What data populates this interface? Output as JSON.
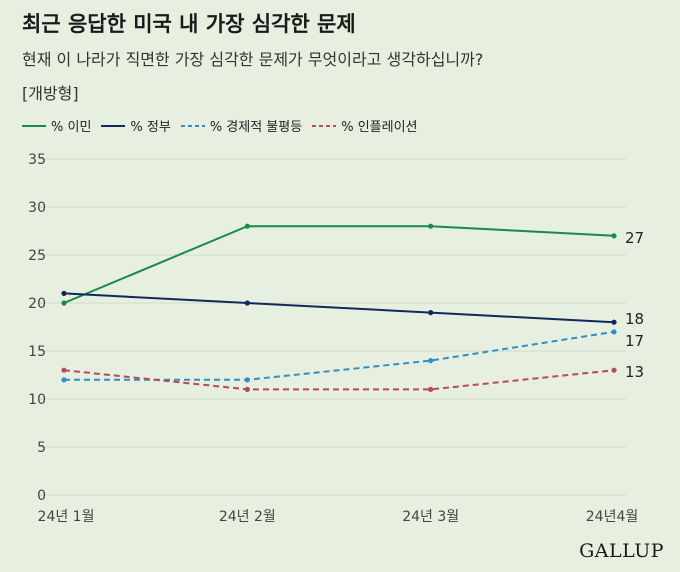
{
  "title": "최근 응답한 미국 내 가장 심각한 문제",
  "subtitle": "현재 이 나라가 직면한 가장 심각한 문제가 무엇이라고 생각하십니까?",
  "note": "[개방형]",
  "brand": "GALLUP",
  "colors": {
    "immigration": "#1a8a4a",
    "government": "#14275c",
    "inequality": "#2f8fc4",
    "inflation": "#b84a5a",
    "grid": "#d3ddce",
    "axis_text": "#444"
  },
  "chart_data": {
    "type": "line",
    "categories": [
      "24년 1월",
      "24년 2월",
      "24년 3월",
      "24년4월"
    ],
    "ylim": [
      0,
      35
    ],
    "yticks": [
      0,
      5,
      10,
      15,
      20,
      25,
      30,
      35
    ],
    "grid": true,
    "legend_position": "top-left",
    "series": [
      {
        "name": "% 이민",
        "key": "immigration",
        "values": [
          20,
          28,
          28,
          27
        ],
        "dashed": false,
        "end_label": "27"
      },
      {
        "name": "% 정부",
        "key": "government",
        "values": [
          21,
          20,
          19,
          18
        ],
        "dashed": false,
        "end_label": "18"
      },
      {
        "name": "% 경제적 불평등",
        "key": "inequality",
        "values": [
          12,
          12,
          14,
          17
        ],
        "dashed": true,
        "end_label": "17"
      },
      {
        "name": "% 인플레이션",
        "key": "inflation",
        "values": [
          13,
          11,
          11,
          13
        ],
        "dashed": true,
        "end_label": "13"
      }
    ]
  }
}
